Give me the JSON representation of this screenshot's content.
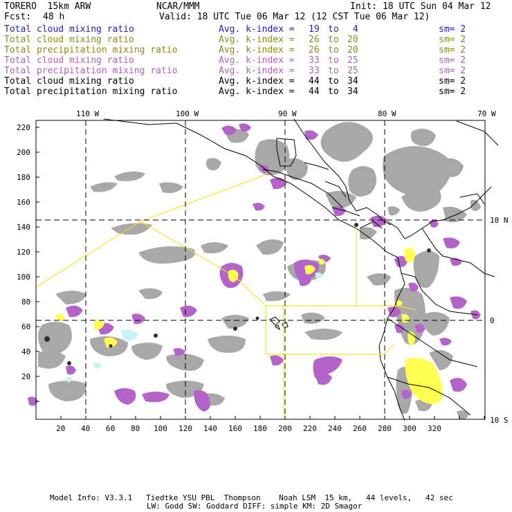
{
  "header": {
    "model": "TORERO  15km ARW",
    "org": "NCAR/MMM",
    "init": "Init: 18 UTC Sun 04 Mar 12",
    "fcst_label": "Fcst:",
    "fcst_value": "48 h",
    "valid": "Valid: 18 UTC Tue 06 Mar 12 (12 CST Tue 06 Mar 12)"
  },
  "legend": [
    {
      "field": "Total cloud mixing ratio",
      "index": "Avg. k-index =",
      "from": "19",
      "to_word": "to",
      "to": "4",
      "sm": "sm= 2",
      "color": "#1c1cc8"
    },
    {
      "field": "Total cloud mixing ratio",
      "index": "Avg. k-index =",
      "from": "26",
      "to_word": "to",
      "to": "20",
      "sm": "sm= 2",
      "color": "#8c8c14"
    },
    {
      "field": "Total precipitation mixing ratio",
      "index": "Avg. k-index =",
      "from": "26",
      "to_word": "to",
      "to": "20",
      "sm": "sm= 2",
      "color": "#8c8c14"
    },
    {
      "field": "Total cloud mixing ratio",
      "index": "Avg. k-index =",
      "from": "33",
      "to_word": "to",
      "to": "25",
      "sm": "sm= 2",
      "color": "#b060c0"
    },
    {
      "field": "Total precipitation mixing ratio",
      "index": "Avg. k-index =",
      "from": "33",
      "to_word": "to",
      "to": "25",
      "sm": "sm= 2",
      "color": "#b060c0"
    },
    {
      "field": "Total cloud mixing ratio",
      "index": "Avg. k-index =",
      "from": "44",
      "to_word": "to",
      "to": "34",
      "sm": "sm= 2",
      "color": "#000000"
    },
    {
      "field": "Total precipitation mixing ratio",
      "index": "Avg. k-index =",
      "from": "44",
      "to_word": "to",
      "to": "34",
      "sm": "sm= 2",
      "color": "#000000"
    }
  ],
  "map": {
    "lon_labels": [
      "110 W",
      "100 W",
      "90 W",
      "80 W",
      "70 W"
    ],
    "lat_labels": [
      "10 N",
      "0",
      "10 S"
    ],
    "y_ticks": [
      "220",
      "200",
      "180",
      "160",
      "140",
      "120",
      "100",
      "80",
      "60",
      "40",
      "20"
    ],
    "x_ticks": [
      "20",
      "40",
      "60",
      "80",
      "100",
      "120",
      "140",
      "160",
      "180",
      "200",
      "220",
      "240",
      "260",
      "280",
      "300",
      "320"
    ],
    "colors": {
      "gray": "#a8a8a8",
      "purple": "#b464c8",
      "yellow": "#ffff50",
      "cyan": "#c8f4f8",
      "domain_line": "#f0e628"
    }
  },
  "footer": {
    "line1": "Model Info: V3.3.1   Tiedtke YSU PBL  Thompson    Noah LSM  15 km,   44 levels,   42 sec",
    "line2": "LW: Godd SW: Goddard DIFF: simple KM: 2D Smagor"
  }
}
